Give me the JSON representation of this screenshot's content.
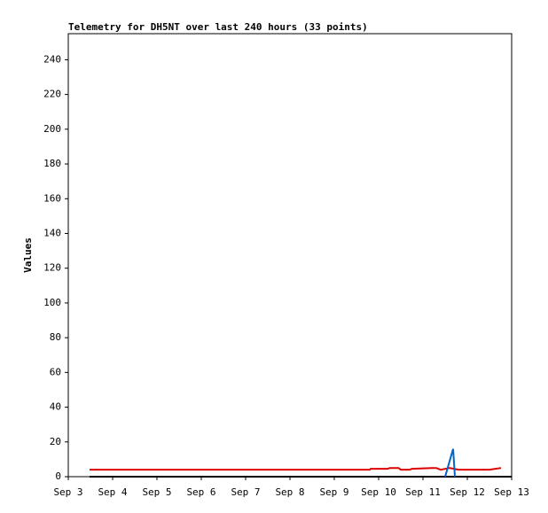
{
  "chart_data": {
    "type": "line",
    "title": "Telemetry for DH5NT over last 240 hours (33 points)",
    "y_label": "Values",
    "xlim": [
      3,
      13
    ],
    "xticks": [
      {
        "value": 3,
        "label": "Sep 3"
      },
      {
        "value": 4,
        "label": "Sep 4"
      },
      {
        "value": 5,
        "label": "Sep 5"
      },
      {
        "value": 6,
        "label": "Sep 6"
      },
      {
        "value": 7,
        "label": "Sep 7"
      },
      {
        "value": 8,
        "label": "Sep 8"
      },
      {
        "value": 9,
        "label": "Sep 9"
      },
      {
        "value": 10,
        "label": "Sep 10"
      },
      {
        "value": 11,
        "label": "Sep 11"
      },
      {
        "value": 12,
        "label": "Sep 12"
      },
      {
        "value": 13,
        "label": "Sep 13"
      }
    ],
    "ylim": [
      0,
      255
    ],
    "yticks": [
      0,
      20,
      40,
      60,
      80,
      100,
      120,
      140,
      160,
      180,
      200,
      220,
      240
    ],
    "series": [
      {
        "color": "#000000",
        "x": [
          3.48,
          13
        ],
        "values": [
          0,
          0
        ]
      },
      {
        "color": "#dd0000",
        "x": [
          3.48,
          9.8,
          9.82,
          10.2,
          10.25,
          10.45,
          10.5,
          10.7,
          10.75,
          11.2,
          11.3,
          11.4,
          11.5,
          11.6,
          11.8,
          12.5,
          12.76
        ],
        "values": [
          4,
          4,
          4.5,
          4.5,
          5,
          5,
          4,
          4,
          4.5,
          5,
          5,
          4,
          4.5,
          5,
          4,
          4,
          5
        ]
      },
      {
        "color": "#0066cc",
        "x": [
          11.5,
          11.68,
          11.72
        ],
        "values": [
          0,
          16,
          0
        ]
      }
    ]
  }
}
